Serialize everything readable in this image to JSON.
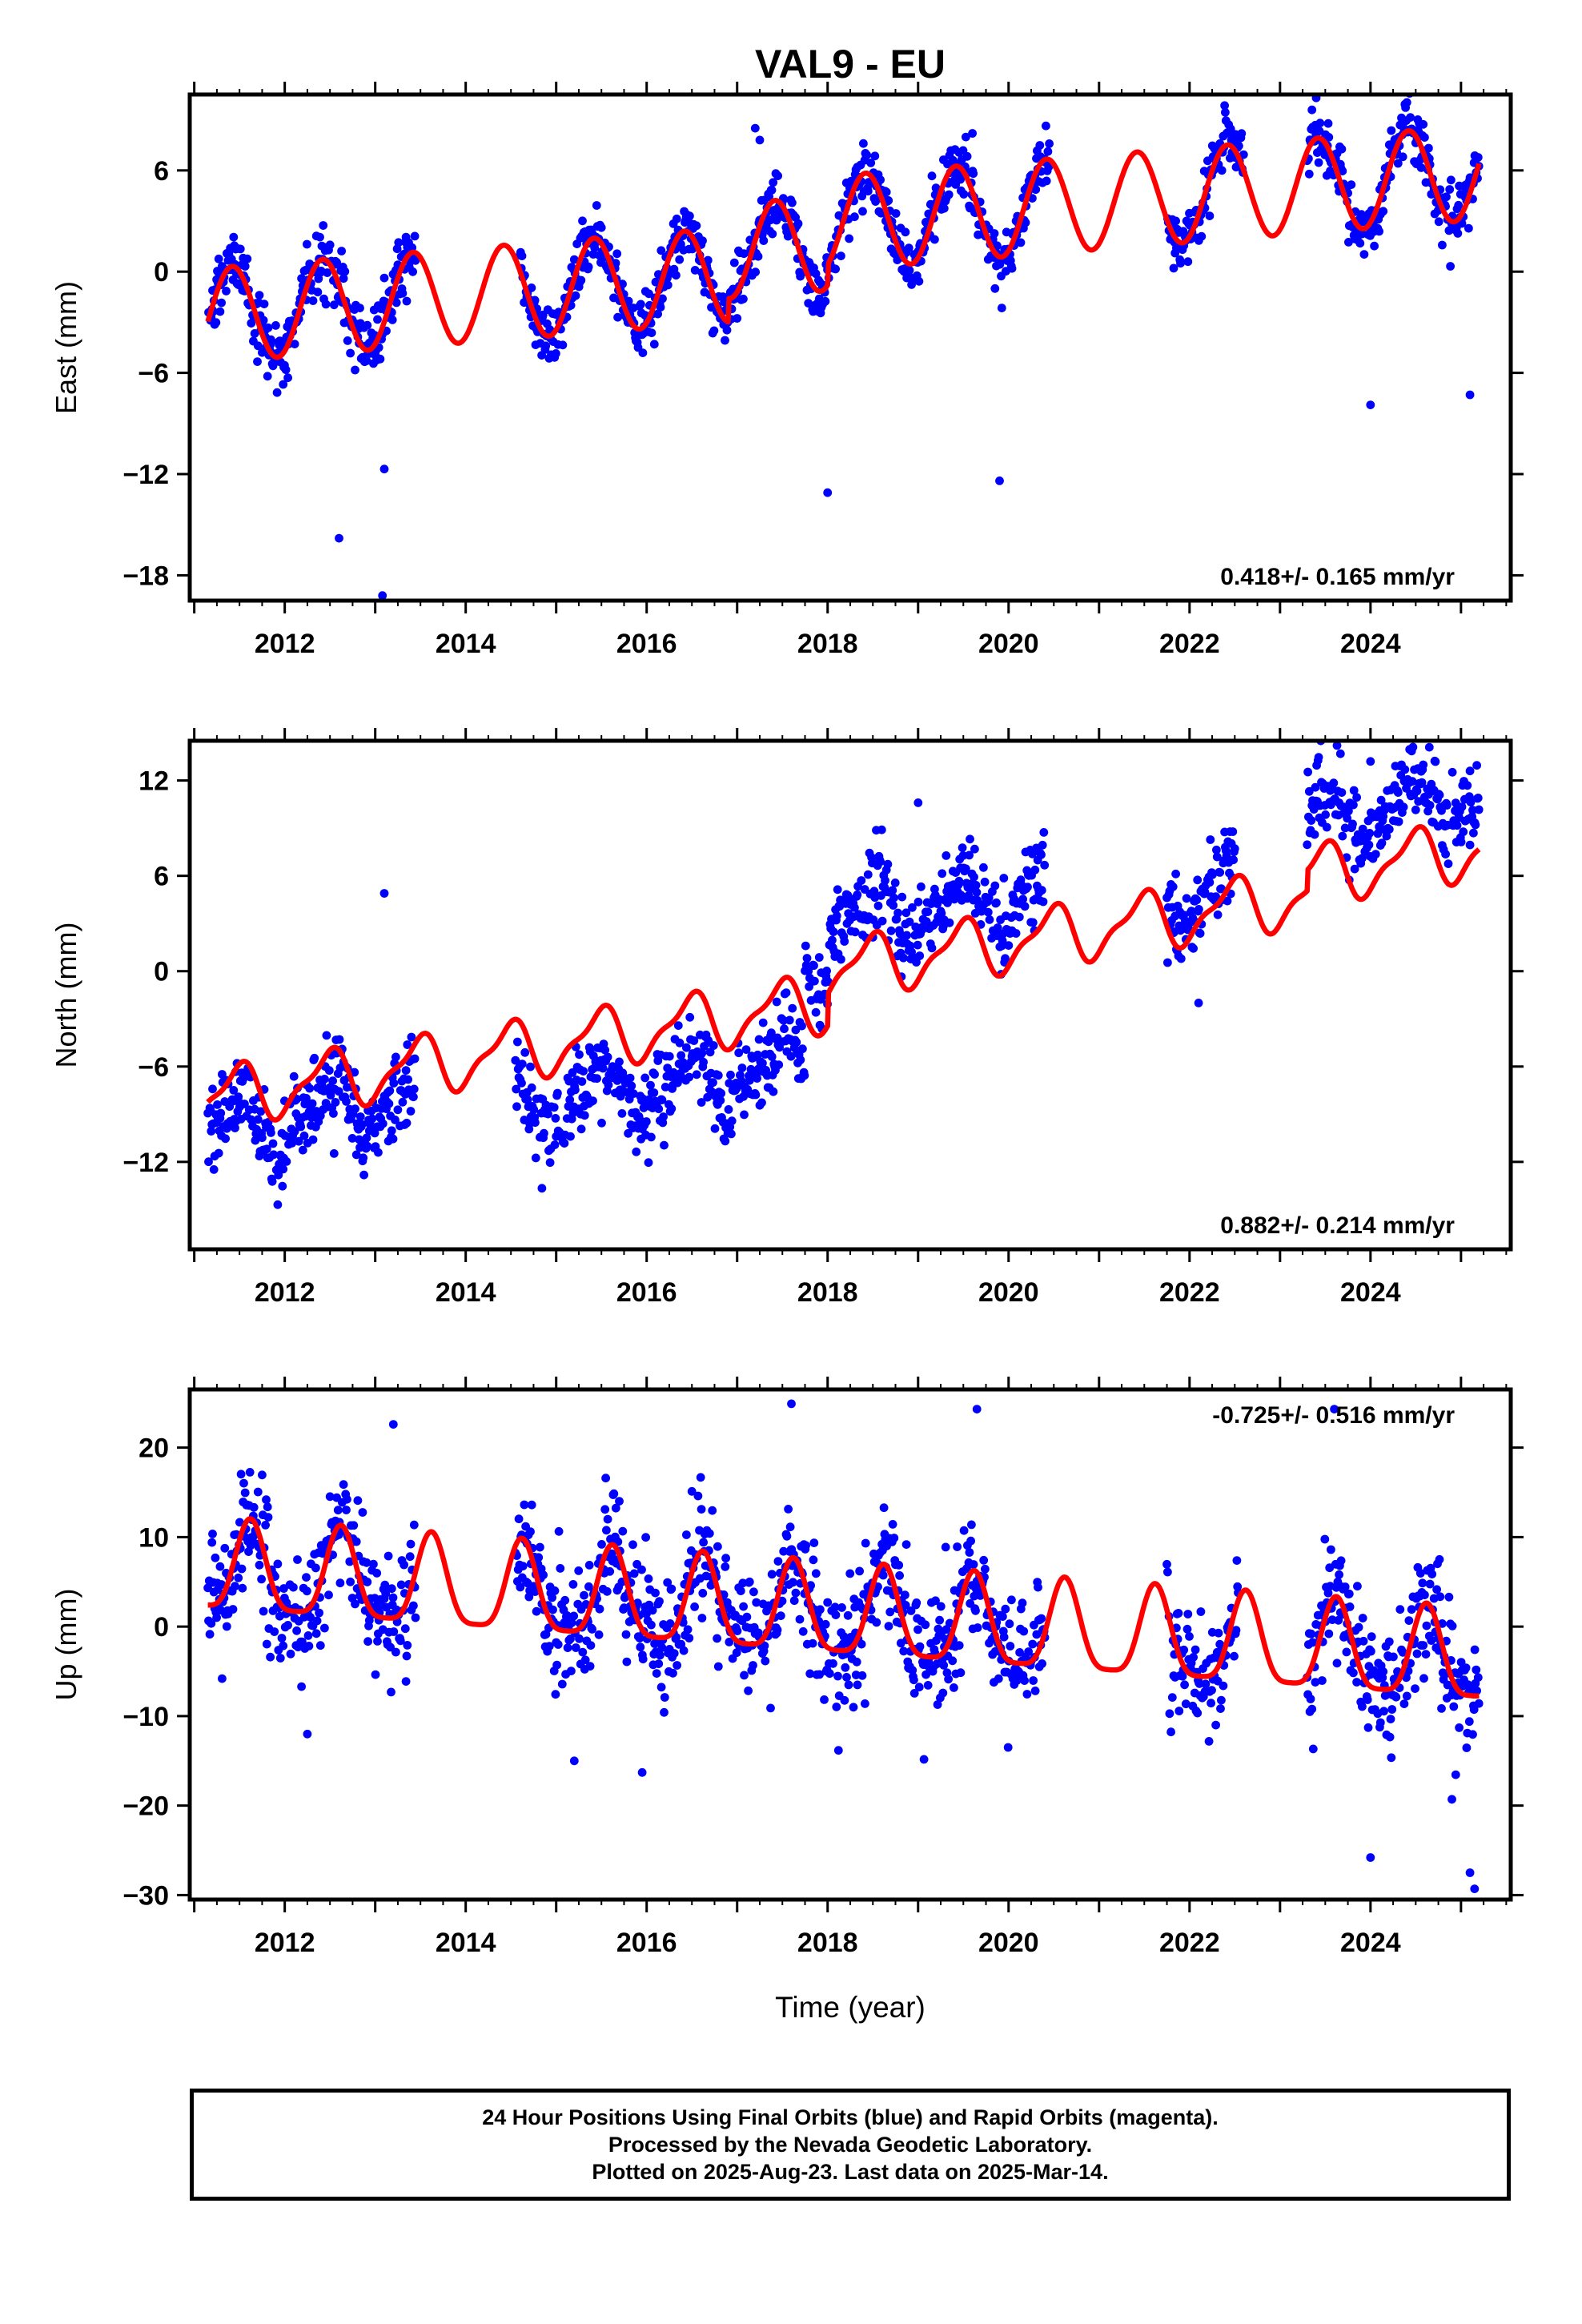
{
  "title": "VAL9 - EU",
  "xlabel": "Time (year)",
  "footer": {
    "line1": "24 Hour Positions Using Final Orbits (blue) and Rapid Orbits (magenta).",
    "line2": "Processed by the Nevada Geodetic Laboratory.",
    "line3": "Plotted on 2025-Aug-23. Last data on 2025-Mar-14."
  },
  "colors": {
    "final_orbits": "#0000ff",
    "model_fit": "#ff0000",
    "axes": "#000000"
  },
  "chart_data": [
    {
      "type": "scatter",
      "component": "east",
      "ylabel": "East (mm)",
      "xlim": [
        2010.95,
        2025.55
      ],
      "ylim": [
        -19.5,
        10.5
      ],
      "yticks": [
        -18,
        -12,
        -6,
        0,
        6
      ],
      "xticks": [
        2012,
        2014,
        2016,
        2018,
        2020,
        2022,
        2024
      ],
      "rate_label": "0.418+/- 0.165 mm/yr",
      "rate_label_position": "bottom-right",
      "grid": false,
      "model": {
        "intercept": -2.6,
        "rate": 0.418,
        "annual_amp": 2.8,
        "annual_peak": 0.42,
        "semiannual_amp": 0,
        "semiannual_peak": 0,
        "offsets": [
          {
            "x": 2016.9,
            "dy": 1.4
          },
          {
            "x": 2018.0,
            "dy": 1.2
          }
        ]
      },
      "data_segments": [
        [
          2011.15,
          2013.45
        ],
        [
          2014.6,
          2020.45
        ],
        [
          2021.75,
          2022.6
        ],
        [
          2023.3,
          2025.2
        ]
      ],
      "scatter_std": 0.9,
      "outliers": [
        [
          2012.6,
          -15.8
        ],
        [
          2013.1,
          -11.7
        ],
        [
          2013.08,
          -19.2
        ],
        [
          2018.0,
          -13.1
        ],
        [
          2019.9,
          -12.4
        ],
        [
          2017.2,
          8.5
        ],
        [
          2017.25,
          7.8
        ],
        [
          2023.4,
          10.3
        ],
        [
          2024.0,
          -7.9
        ],
        [
          2025.1,
          -7.3
        ],
        [
          2019.6,
          8.2
        ]
      ]
    },
    {
      "type": "scatter",
      "component": "north",
      "ylabel": "North (mm)",
      "xlim": [
        2010.95,
        2025.55
      ],
      "ylim": [
        -17.5,
        14.5
      ],
      "yticks": [
        -12,
        -6,
        0,
        6,
        12
      ],
      "xticks": [
        2012,
        2014,
        2016,
        2018,
        2020,
        2022,
        2024
      ],
      "rate_label": "0.882+/- 0.214 mm/yr",
      "rate_label_position": "bottom-right",
      "grid": false,
      "model": {
        "intercept": -8.0,
        "rate": 0.882,
        "annual_amp": 1.7,
        "annual_peak": 0.47,
        "semiannual_amp": 0.6,
        "semiannual_peak": 0.1,
        "offsets": [
          {
            "x": 2018.0,
            "dy": 2.0
          },
          {
            "x": 2023.3,
            "dy": 1.3
          }
        ]
      },
      "data_segments": [
        [
          2011.15,
          2013.45
        ],
        [
          2014.55,
          2017.75
        ],
        [
          2017.75,
          2020.4
        ],
        [
          2021.75,
          2022.5
        ],
        [
          2023.3,
          2025.2
        ]
      ],
      "data_offsets": [
        -2.0,
        -3.5,
        3.0,
        1.5,
        3.4
      ],
      "scatter_std": 1.3,
      "outliers": [
        [
          2013.1,
          4.9
        ],
        [
          2019.0,
          10.6
        ],
        [
          2022.1,
          -2.0
        ],
        [
          2024.0,
          13.2
        ],
        [
          2025.1,
          12.6
        ]
      ]
    },
    {
      "type": "scatter",
      "component": "up",
      "ylabel": "Up (mm)",
      "xlim": [
        2010.95,
        2025.55
      ],
      "ylim": [
        -30.5,
        26.5
      ],
      "yticks": [
        -30,
        -20,
        -10,
        0,
        10,
        20
      ],
      "xticks": [
        2012,
        2014,
        2016,
        2018,
        2020,
        2022,
        2024
      ],
      "rate_label": "-0.725+/- 0.516 mm/yr",
      "rate_label_position": "top-right",
      "grid": false,
      "model": {
        "intercept": 6.2,
        "rate": -0.725,
        "annual_amp": 5.0,
        "annual_peak": 0.62,
        "semiannual_amp": 1.2,
        "semiannual_peak": 0.12,
        "offsets": []
      },
      "data_segments": [
        [
          2011.15,
          2013.45
        ],
        [
          2014.55,
          2020.4
        ],
        [
          2021.75,
          2022.55
        ],
        [
          2023.3,
          2025.2
        ]
      ],
      "scatter_std": 3.4,
      "outliers": [
        [
          2012.25,
          -12.0
        ],
        [
          2013.2,
          22.6
        ],
        [
          2015.2,
          -15.0
        ],
        [
          2015.95,
          -16.3
        ],
        [
          2017.6,
          24.9
        ],
        [
          2019.65,
          24.3
        ],
        [
          2023.6,
          24.3
        ],
        [
          2024.0,
          -25.8
        ],
        [
          2024.9,
          -19.3
        ],
        [
          2025.1,
          -27.5
        ],
        [
          2025.15,
          -29.3
        ]
      ]
    }
  ]
}
